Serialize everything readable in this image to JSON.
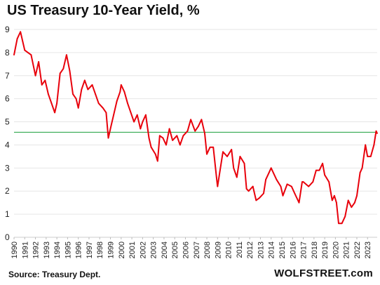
{
  "title": "US Treasury 10-Year Yield, %",
  "source": "Source: Treasury Dept.",
  "brand": "WOLFSTREET.com",
  "colors": {
    "series": "#e8000b",
    "reference_line": "#1a9e3a",
    "grid": "#e6e6e6"
  },
  "chart_data": {
    "type": "line",
    "title": "US Treasury 10-Year Yield, %",
    "xlabel": "",
    "ylabel": "",
    "xlim": [
      1990,
      2023.9
    ],
    "ylim": [
      0,
      9
    ],
    "y_ticks": [
      "0",
      "1",
      "2",
      "3",
      "4",
      "5",
      "6",
      "7",
      "8",
      "9"
    ],
    "x_ticks": [
      "1990",
      "1991",
      "1992",
      "1993",
      "1994",
      "1995",
      "1996",
      "1997",
      "1998",
      "1999",
      "2000",
      "2001",
      "2002",
      "2003",
      "2004",
      "2005",
      "2006",
      "2007",
      "2008",
      "2009",
      "2010",
      "2011",
      "2012",
      "2013",
      "2014",
      "2015",
      "2016",
      "2017",
      "2018",
      "2019",
      "2020",
      "2021",
      "2022",
      "2023"
    ],
    "grid": "horizontal",
    "reference_line": {
      "y": 4.55
    },
    "series": [
      {
        "x": [
          1990.0,
          1990.3,
          1990.6,
          1990.8,
          1991.0,
          1991.3,
          1991.6,
          1992.0,
          1992.3,
          1992.6,
          1992.9,
          1993.2,
          1993.5,
          1993.8,
          1994.0,
          1994.3,
          1994.6,
          1994.9,
          1995.2,
          1995.5,
          1995.8,
          1996.0,
          1996.3,
          1996.6,
          1996.9,
          1997.3,
          1997.6,
          1997.9,
          1998.3,
          1998.6,
          1998.8,
          1999.0,
          1999.3,
          1999.6,
          1999.9,
          2000.0,
          2000.3,
          2000.6,
          2000.9,
          2001.2,
          2001.5,
          2001.8,
          2002.0,
          2002.3,
          2002.6,
          2002.8,
          2003.2,
          2003.4,
          2003.6,
          2003.9,
          2004.2,
          2004.5,
          2004.8,
          2005.2,
          2005.5,
          2005.8,
          2006.2,
          2006.5,
          2006.9,
          2007.2,
          2007.5,
          2007.8,
          2008.0,
          2008.3,
          2008.6,
          2008.9,
          2009.0,
          2009.3,
          2009.5,
          2009.9,
          2010.3,
          2010.5,
          2010.8,
          2011.1,
          2011.5,
          2011.7,
          2011.9,
          2012.3,
          2012.6,
          2012.9,
          2013.3,
          2013.5,
          2013.8,
          2014.0,
          2014.5,
          2014.9,
          2015.1,
          2015.5,
          2015.9,
          2016.2,
          2016.6,
          2016.9,
          2017.0,
          2017.5,
          2017.9,
          2018.2,
          2018.5,
          2018.8,
          2019.0,
          2019.4,
          2019.7,
          2019.9,
          2020.1,
          2020.3,
          2020.6,
          2020.9,
          2021.2,
          2021.5,
          2021.8,
          2022.0,
          2022.3,
          2022.5,
          2022.8,
          2023.0,
          2023.3,
          2023.6,
          2023.8,
          2023.9
        ],
        "values": [
          7.9,
          8.6,
          8.9,
          8.5,
          8.1,
          8.0,
          7.9,
          7.0,
          7.6,
          6.6,
          6.8,
          6.2,
          5.8,
          5.4,
          5.8,
          7.1,
          7.3,
          7.9,
          7.2,
          6.2,
          6.0,
          5.6,
          6.4,
          6.8,
          6.4,
          6.6,
          6.2,
          5.8,
          5.6,
          5.4,
          4.3,
          4.7,
          5.3,
          5.9,
          6.3,
          6.6,
          6.3,
          5.8,
          5.4,
          5.0,
          5.3,
          4.7,
          5.0,
          5.3,
          4.3,
          3.9,
          3.6,
          3.3,
          4.4,
          4.3,
          4.0,
          4.7,
          4.2,
          4.4,
          4.0,
          4.4,
          4.6,
          5.1,
          4.6,
          4.8,
          5.1,
          4.5,
          3.6,
          3.9,
          3.9,
          2.6,
          2.2,
          3.1,
          3.7,
          3.5,
          3.8,
          3.0,
          2.6,
          3.5,
          3.2,
          2.1,
          2.0,
          2.2,
          1.6,
          1.7,
          1.9,
          2.5,
          2.8,
          3.0,
          2.5,
          2.2,
          1.8,
          2.3,
          2.2,
          1.9,
          1.5,
          2.4,
          2.4,
          2.2,
          2.4,
          2.9,
          2.9,
          3.2,
          2.7,
          2.4,
          1.6,
          1.8,
          1.5,
          0.6,
          0.6,
          0.9,
          1.6,
          1.3,
          1.5,
          1.8,
          2.8,
          3.0,
          4.0,
          3.5,
          3.5,
          4.0,
          4.6,
          4.5
        ]
      }
    ]
  }
}
